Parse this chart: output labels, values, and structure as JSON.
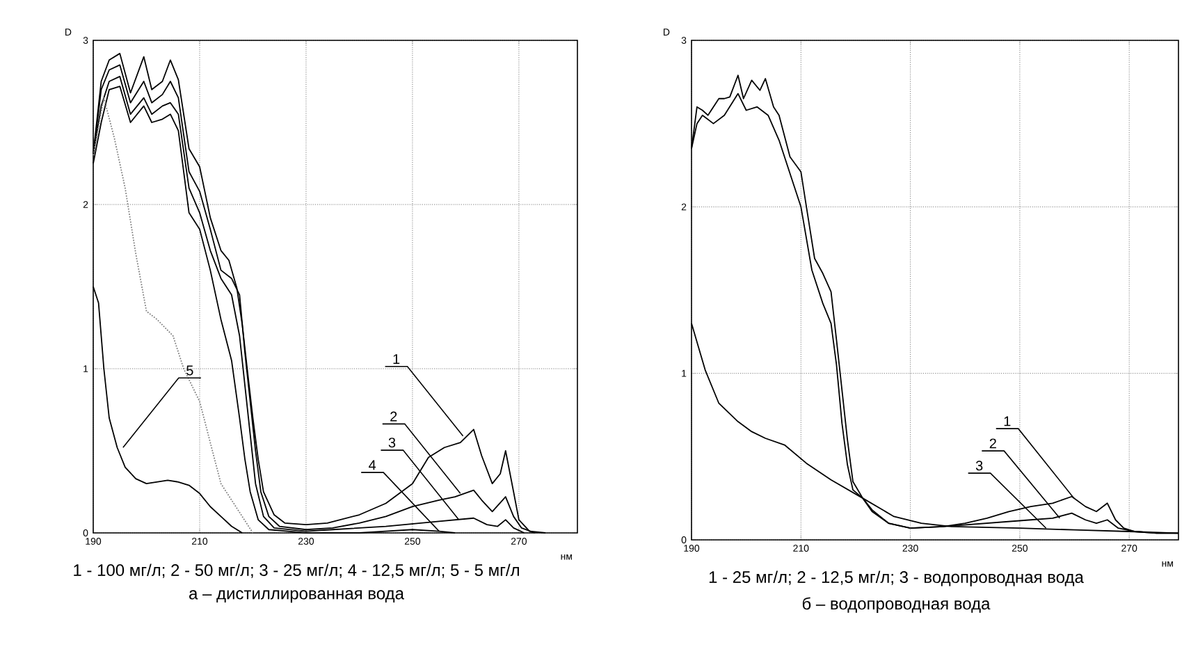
{
  "chart_data": [
    {
      "type": "line",
      "xlabel": "нм",
      "ylabel": "D",
      "xlim": [
        190,
        281
      ],
      "ylim": [
        0,
        3
      ],
      "xticks": [
        190,
        210,
        230,
        250,
        270
      ],
      "yticks": [
        0,
        1,
        2,
        3
      ],
      "grid": true,
      "line_style": "solid",
      "series": [
        {
          "color": "#000000",
          "x": [
            190,
            191.5,
            193,
            195,
            197,
            199.5,
            201,
            203,
            204.5,
            206,
            208,
            210,
            212,
            214,
            215.5,
            217,
            218,
            219,
            220,
            221,
            222,
            224,
            226,
            230,
            234,
            240,
            245,
            250,
            253,
            256,
            259,
            261.5,
            263,
            265,
            266.5,
            267.5,
            269,
            270,
            272,
            275
          ],
          "values": [
            2.31,
            2.75,
            2.88,
            2.92,
            2.68,
            2.9,
            2.7,
            2.75,
            2.88,
            2.76,
            2.34,
            2.23,
            1.92,
            1.72,
            1.66,
            1.49,
            1.27,
            0.98,
            0.7,
            0.45,
            0.25,
            0.11,
            0.06,
            0.05,
            0.06,
            0.11,
            0.18,
            0.3,
            0.46,
            0.52,
            0.55,
            0.63,
            0.47,
            0.3,
            0.36,
            0.5,
            0.25,
            0.08,
            0.01,
            0
          ]
        },
        {
          "color": "#000000",
          "x": [
            190,
            191.5,
            193,
            195,
            197,
            199.5,
            201,
            203,
            204.5,
            206,
            208,
            210,
            212,
            214,
            216,
            217.5,
            218.5,
            219.5,
            220.5,
            221.5,
            223,
            225,
            230,
            235,
            240,
            245,
            250,
            255,
            258,
            261.5,
            263,
            265,
            267.5,
            269,
            270.5,
            273
          ],
          "values": [
            2.3,
            2.7,
            2.82,
            2.85,
            2.62,
            2.75,
            2.62,
            2.67,
            2.75,
            2.65,
            2.2,
            2.08,
            1.85,
            1.6,
            1.55,
            1.45,
            1.1,
            0.8,
            0.5,
            0.25,
            0.1,
            0.04,
            0.02,
            0.03,
            0.06,
            0.1,
            0.16,
            0.2,
            0.22,
            0.26,
            0.2,
            0.13,
            0.22,
            0.1,
            0.03,
            0
          ]
        },
        {
          "color": "#000000",
          "x": [
            190,
            191.5,
            193,
            195,
            197,
            199.5,
            201,
            203,
            204.5,
            206,
            208,
            210,
            212,
            214,
            216,
            217.5,
            218.5,
            219.5,
            220.5,
            222,
            224,
            230,
            235,
            245,
            255,
            261.5,
            264,
            266,
            267.5,
            269,
            271
          ],
          "values": [
            2.3,
            2.6,
            2.75,
            2.78,
            2.55,
            2.65,
            2.55,
            2.6,
            2.62,
            2.55,
            2.1,
            1.95,
            1.72,
            1.55,
            1.45,
            1.2,
            0.9,
            0.6,
            0.3,
            0.1,
            0.03,
            0.01,
            0.02,
            0.04,
            0.07,
            0.09,
            0.05,
            0.04,
            0.08,
            0.03,
            0
          ]
        },
        {
          "color": "#000000",
          "x": [
            190,
            191.5,
            193,
            195,
            197,
            199.5,
            201,
            203,
            204.5,
            206,
            208,
            210,
            212,
            214,
            216,
            217.5,
            218.5,
            219.5,
            221,
            223,
            230,
            240,
            250,
            255,
            258
          ],
          "values": [
            2.25,
            2.5,
            2.7,
            2.72,
            2.5,
            2.6,
            2.5,
            2.52,
            2.55,
            2.45,
            1.95,
            1.85,
            1.6,
            1.3,
            1.05,
            0.7,
            0.45,
            0.25,
            0.08,
            0.02,
            0,
            0,
            0.02,
            0.01,
            0
          ]
        },
        {
          "color": "#000000",
          "x": [
            190,
            191,
            192,
            193,
            194.5,
            196,
            198,
            200,
            202,
            204,
            206,
            208,
            210,
            212,
            214,
            216,
            218
          ],
          "values": [
            1.5,
            1.4,
            1.0,
            0.7,
            0.52,
            0.4,
            0.33,
            0.3,
            0.31,
            0.32,
            0.31,
            0.29,
            0.24,
            0.16,
            0.1,
            0.04,
            0
          ]
        },
        {
          "color": "#808080",
          "line_style": "dotted",
          "x": [
            190,
            192,
            194,
            196,
            198,
            200,
            202,
            205,
            207,
            210,
            212,
            214,
            216,
            218,
            220
          ],
          "values": [
            2.3,
            2.65,
            2.4,
            2.1,
            1.7,
            1.35,
            1.3,
            1.2,
            1.0,
            0.8,
            0.55,
            0.3,
            0.2,
            0.1,
            0
          ]
        }
      ],
      "annotations": [
        {
          "text": "1",
          "x": 259.5,
          "y": 0.59
        },
        {
          "text": "2",
          "x": 259,
          "y": 0.24
        },
        {
          "text": "3",
          "x": 258.7,
          "y": 0.08
        },
        {
          "text": "4",
          "x": 255,
          "y": 0.01
        },
        {
          "text": "5",
          "x": 195.6,
          "y": 0.52
        },
        "1 - 100 мг/л; 2 - 50 мг/л; 3 - 25 мг/л; 4 - 12,5 мг/л; 5 - 5 мг/л",
        "а – дистиллированная вода"
      ]
    },
    {
      "type": "line",
      "xlabel": "нм",
      "ylabel": "D",
      "xlim": [
        190,
        279
      ],
      "ylim": [
        0,
        3
      ],
      "xticks": [
        190,
        210,
        230,
        250,
        270
      ],
      "yticks": [
        0,
        1,
        2,
        3
      ],
      "grid": true,
      "line_style": "solid",
      "series": [
        {
          "color": "#000000",
          "x": [
            190,
            191,
            192,
            193,
            195,
            196,
            197,
            198.5,
            199.5,
            201,
            202.5,
            203.5,
            205,
            206,
            208,
            210,
            211,
            212.5,
            214,
            215.5,
            216.5,
            217.5,
            218.5,
            219.5,
            221.3,
            223,
            226,
            230,
            236,
            240,
            244,
            248,
            252,
            256,
            259.5,
            262,
            264,
            266,
            267.5,
            269,
            271,
            275,
            279
          ],
          "values": [
            2.35,
            2.6,
            2.58,
            2.55,
            2.65,
            2.65,
            2.66,
            2.79,
            2.65,
            2.76,
            2.7,
            2.77,
            2.6,
            2.55,
            2.3,
            2.21,
            2.0,
            1.69,
            1.6,
            1.49,
            1.2,
            0.9,
            0.6,
            0.35,
            0.25,
            0.18,
            0.1,
            0.07,
            0.08,
            0.1,
            0.13,
            0.17,
            0.2,
            0.22,
            0.26,
            0.2,
            0.17,
            0.22,
            0.12,
            0.07,
            0.05,
            0.04,
            0.04
          ]
        },
        {
          "color": "#000000",
          "x": [
            190,
            191,
            192,
            194,
            196,
            198.5,
            200,
            202,
            204,
            206,
            208,
            210,
            212,
            214,
            215.5,
            216.5,
            217.5,
            218.5,
            219.5,
            221.3,
            223,
            226,
            230,
            236,
            244,
            252,
            256,
            259.5,
            262,
            264,
            266,
            268,
            271,
            275,
            279
          ],
          "values": [
            2.35,
            2.5,
            2.55,
            2.5,
            2.55,
            2.68,
            2.58,
            2.6,
            2.55,
            2.4,
            2.2,
            2.0,
            1.62,
            1.42,
            1.3,
            1.05,
            0.7,
            0.45,
            0.3,
            0.25,
            0.17,
            0.1,
            0.07,
            0.08,
            0.1,
            0.12,
            0.13,
            0.16,
            0.12,
            0.1,
            0.12,
            0.07,
            0.05,
            0.04,
            0.04
          ]
        },
        {
          "color": "#000000",
          "x": [
            190,
            192.5,
            195,
            198.5,
            201,
            203.5,
            207,
            211,
            215.5,
            221.3,
            227,
            232,
            237.5,
            250,
            260,
            270,
            279
          ],
          "values": [
            1.3,
            1.02,
            0.82,
            0.71,
            0.65,
            0.61,
            0.57,
            0.46,
            0.36,
            0.25,
            0.14,
            0.1,
            0.08,
            0.07,
            0.06,
            0.05,
            0.04
          ]
        }
      ],
      "annotations": [
        {
          "text": "1",
          "x": 259.9,
          "y": 0.25
        },
        {
          "text": "2",
          "x": 257.3,
          "y": 0.13
        },
        {
          "text": "3",
          "x": 254.8,
          "y": 0.07
        },
        "1 - 25 мг/л; 2 - 12,5 мг/л; 3 - водопроводная вода",
        "б – водопроводная вода"
      ]
    }
  ]
}
